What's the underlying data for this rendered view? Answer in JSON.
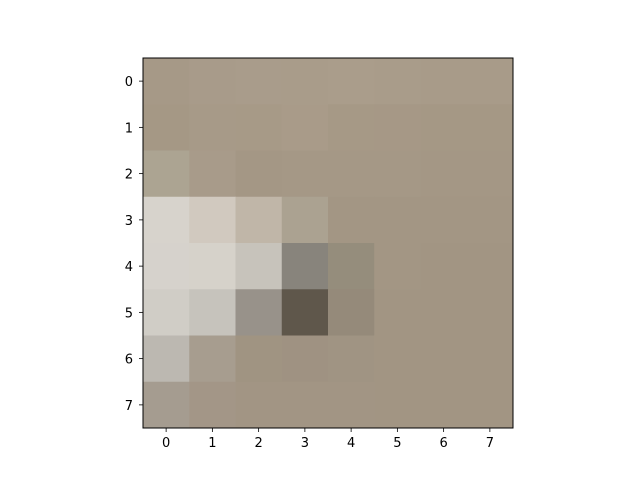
{
  "chart_data": {
    "type": "heatmap",
    "title": "",
    "xlabel": "",
    "ylabel": "",
    "rows": 8,
    "cols": 8,
    "x_ticks": [
      "0",
      "1",
      "2",
      "3",
      "4",
      "5",
      "6",
      "7"
    ],
    "y_ticks": [
      "0",
      "1",
      "2",
      "3",
      "4",
      "5",
      "6",
      "7"
    ],
    "xlim": [
      -0.5,
      7.5
    ],
    "ylim": [
      7.5,
      -0.5
    ],
    "grid": false,
    "pixels": [
      [
        "#a69987",
        "#a89b8a",
        "#a99c8b",
        "#a99c8a",
        "#aa9d8b",
        "#a99c8a",
        "#a89b89",
        "#a89b89"
      ],
      [
        "#a59885",
        "#a79a88",
        "#a79a87",
        "#a99b89",
        "#a69986",
        "#a69886",
        "#a59885",
        "#a59885"
      ],
      [
        "#aca492",
        "#a89b8a",
        "#a49785",
        "#a59886",
        "#a59886",
        "#a59886",
        "#a49785",
        "#a49785"
      ],
      [
        "#d7d3cc",
        "#d1c9bf",
        "#c0b6a8",
        "#aba291",
        "#a39684",
        "#a39684",
        "#a39684",
        "#a39684"
      ],
      [
        "#d6d2cc",
        "#d6d2ca",
        "#c7c3bb",
        "#88847c",
        "#958d7c",
        "#a39684",
        "#a29583",
        "#a29583"
      ],
      [
        "#d0cdc6",
        "#c6c3bc",
        "#98928a",
        "#5f574b",
        "#958a7a",
        "#a29583",
        "#a29583",
        "#a29583"
      ],
      [
        "#bcb8b1",
        "#a79d8f",
        "#a09482",
        "#9f9282",
        "#a09483",
        "#a29583",
        "#a29583",
        "#a29583"
      ],
      [
        "#a59c90",
        "#a39687",
        "#a29584",
        "#a29584",
        "#a29584",
        "#a29583",
        "#a29583",
        "#a29583"
      ]
    ]
  }
}
